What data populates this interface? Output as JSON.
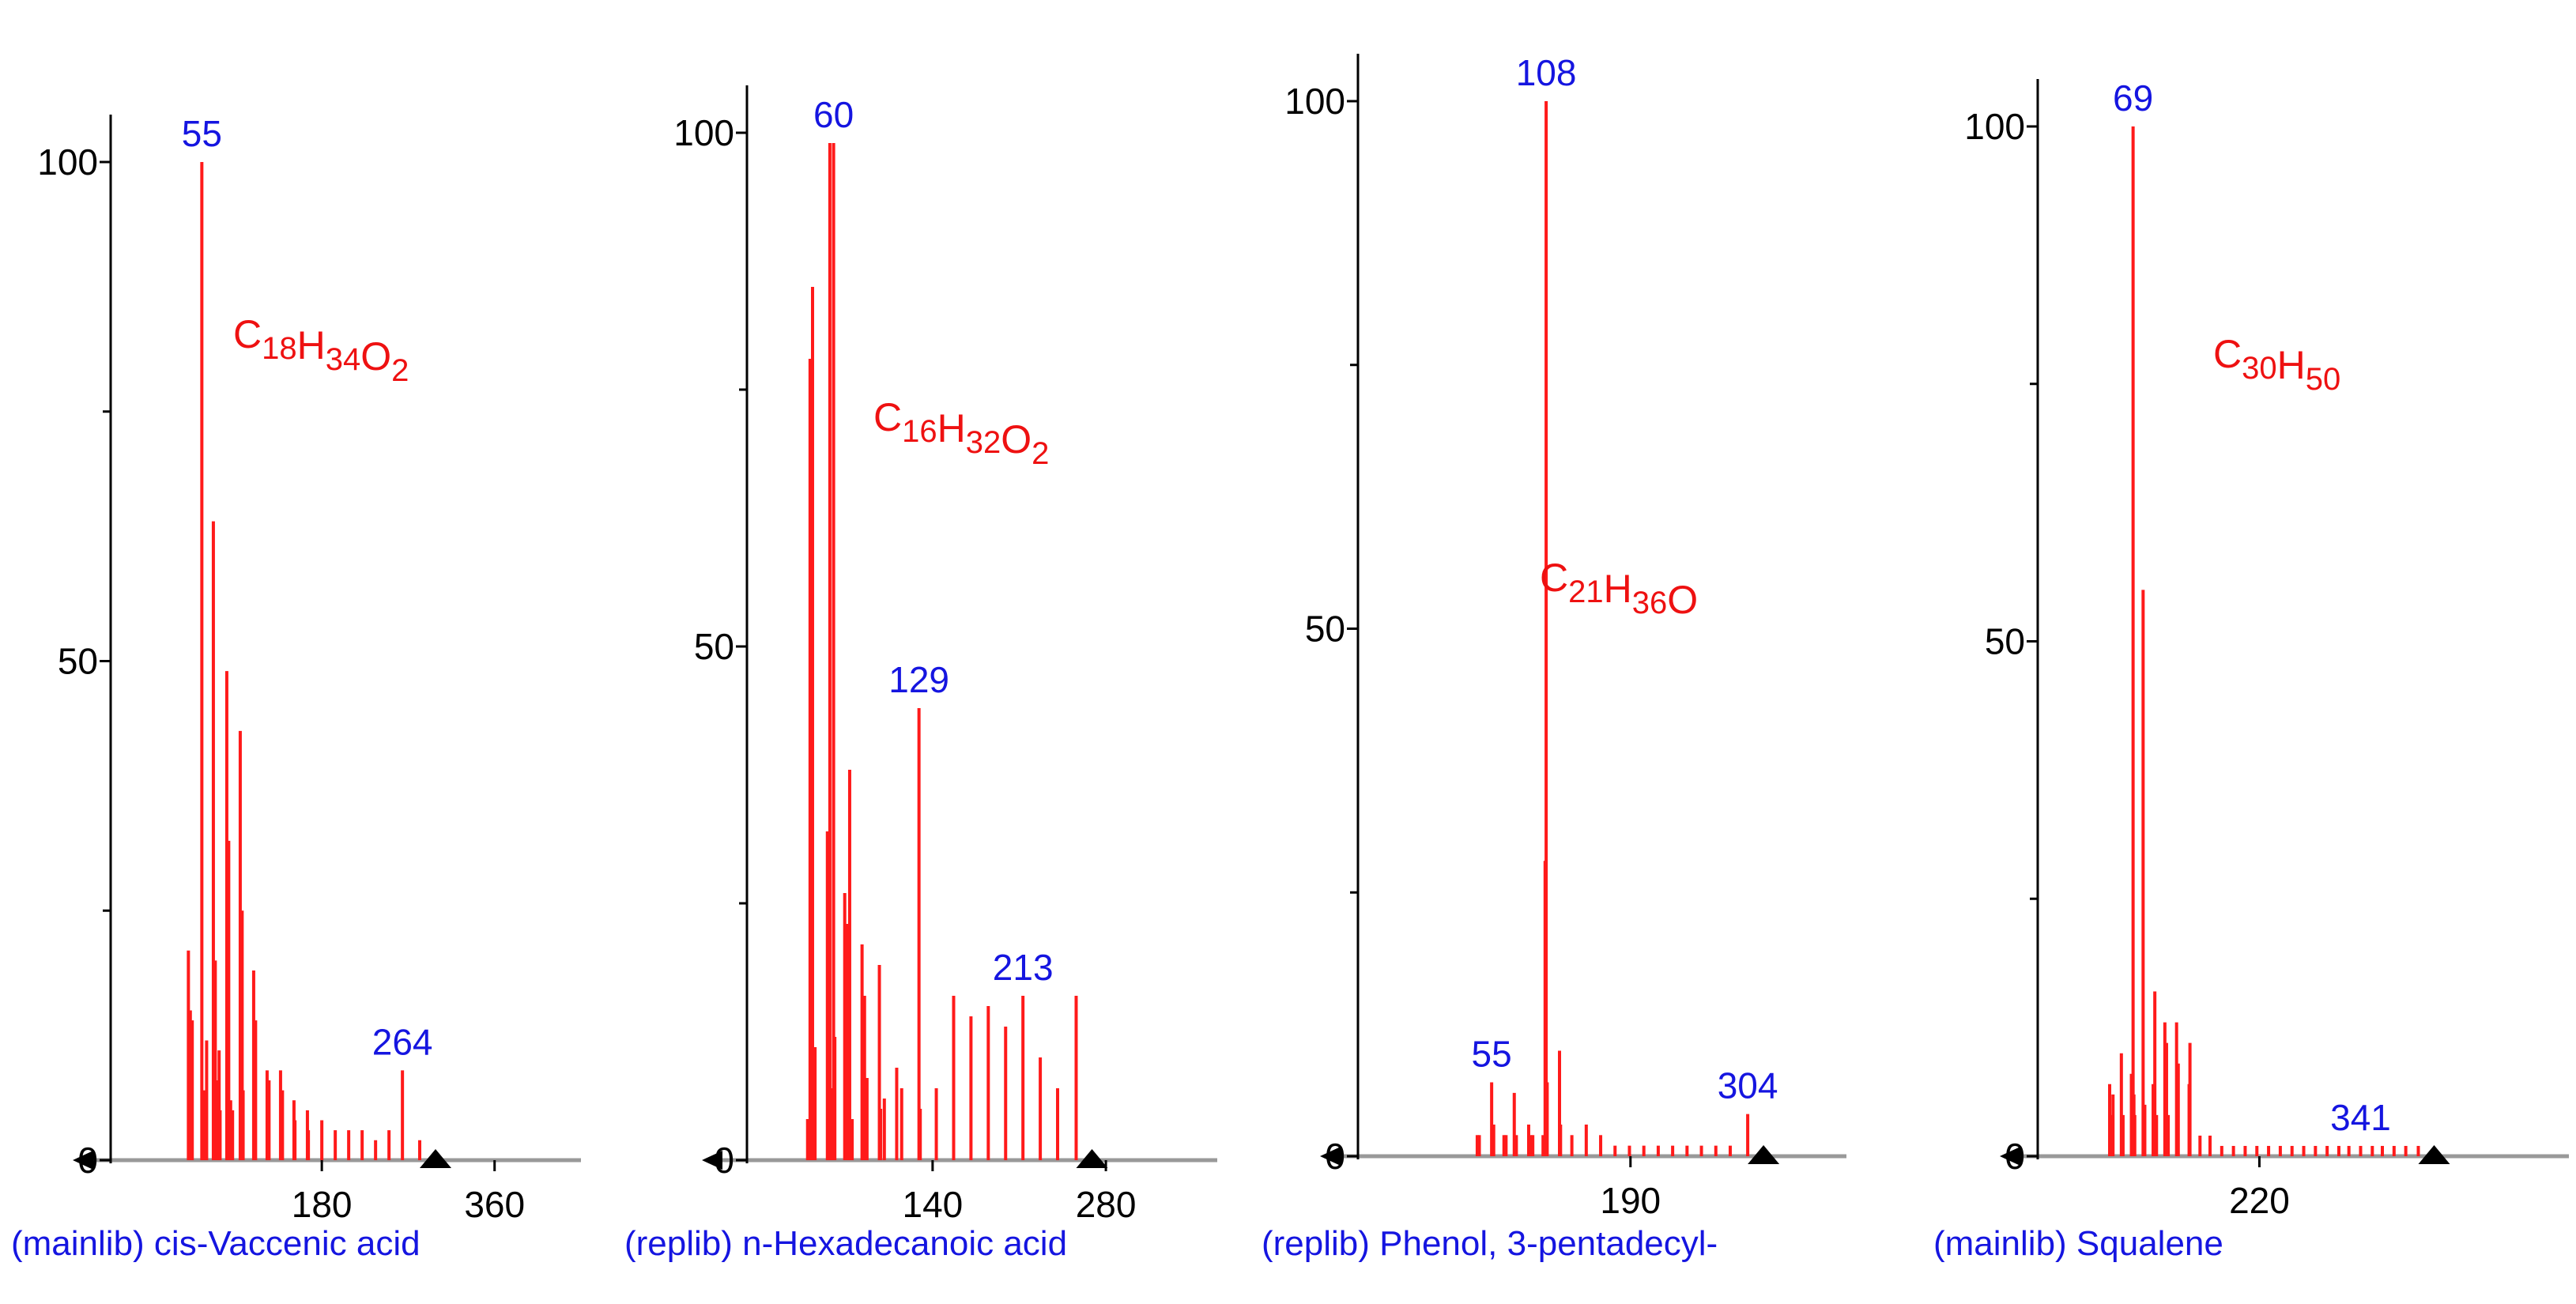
{
  "colors": {
    "peak": "#ff1a1a",
    "label": "#1515e0",
    "axis": "#000000",
    "baseline": "#999999",
    "formula": "#ee1111"
  },
  "chart_data": [
    {
      "type": "bar",
      "caption": "(mainlib) cis-Vaccenic acid",
      "formula": {
        "elements": [
          [
            "C",
            "18"
          ],
          [
            "H",
            "34"
          ],
          [
            "O",
            "2"
          ]
        ]
      },
      "y_ticks": [
        0,
        50,
        100
      ],
      "x_ticks": [
        180,
        360
      ],
      "xlim": [
        -40,
        450
      ],
      "ylim": [
        0,
        100
      ],
      "labeled_peaks": [
        {
          "x": 55,
          "label": "55"
        },
        {
          "x": 264,
          "label": "264"
        }
      ],
      "peaks": [
        [
          41,
          21
        ],
        [
          43,
          15
        ],
        [
          45,
          14
        ],
        [
          55,
          100
        ],
        [
          57,
          7
        ],
        [
          60,
          12
        ],
        [
          67,
          64
        ],
        [
          69,
          20
        ],
        [
          71,
          8
        ],
        [
          73,
          11
        ],
        [
          74,
          5
        ],
        [
          81,
          49
        ],
        [
          83,
          32
        ],
        [
          85,
          6
        ],
        [
          87,
          5
        ],
        [
          95,
          43
        ],
        [
          97,
          25
        ],
        [
          98,
          7
        ],
        [
          109,
          19
        ],
        [
          111,
          14
        ],
        [
          123,
          9
        ],
        [
          125,
          8
        ],
        [
          137,
          9
        ],
        [
          139,
          7
        ],
        [
          151,
          6
        ],
        [
          152,
          4
        ],
        [
          165,
          5
        ],
        [
          166,
          3
        ],
        [
          180,
          4
        ],
        [
          194,
          3
        ],
        [
          208,
          3
        ],
        [
          222,
          3
        ],
        [
          236,
          2
        ],
        [
          250,
          3
        ],
        [
          264,
          9
        ],
        [
          282,
          2
        ]
      ]
    },
    {
      "type": "bar",
      "caption": "(replib) n-Hexadecanoic acid",
      "formula": {
        "elements": [
          [
            "C",
            "16"
          ],
          [
            "H",
            "32"
          ],
          [
            "O",
            "2"
          ]
        ]
      },
      "y_ticks": [
        0,
        50,
        100
      ],
      "x_ticks": [
        140,
        280
      ],
      "xlim": [
        -10,
        370
      ],
      "ylim": [
        0,
        100
      ],
      "labeled_peaks": [
        {
          "x": 60,
          "label": "60"
        },
        {
          "x": 129,
          "label": "129"
        },
        {
          "x": 213,
          "label": "213"
        }
      ],
      "peaks": [
        [
          39,
          4
        ],
        [
          41,
          78
        ],
        [
          43,
          85
        ],
        [
          45,
          11
        ],
        [
          55,
          32
        ],
        [
          57,
          99
        ],
        [
          59,
          7
        ],
        [
          60,
          99
        ],
        [
          61,
          12
        ],
        [
          69,
          26
        ],
        [
          71,
          23
        ],
        [
          73,
          38
        ],
        [
          75,
          4
        ],
        [
          83,
          21
        ],
        [
          85,
          16
        ],
        [
          87,
          8
        ],
        [
          97,
          19
        ],
        [
          98,
          5
        ],
        [
          101,
          6
        ],
        [
          111,
          9
        ],
        [
          115,
          7
        ],
        [
          129,
          44
        ],
        [
          130,
          5
        ],
        [
          143,
          7
        ],
        [
          157,
          16
        ],
        [
          171,
          14
        ],
        [
          185,
          15
        ],
        [
          199,
          13
        ],
        [
          213,
          16
        ],
        [
          227,
          10
        ],
        [
          241,
          7
        ],
        [
          256,
          16
        ]
      ]
    },
    {
      "type": "bar",
      "caption": "(replib) Phenol, 3-pentadecyl-",
      "formula": {
        "elements": [
          [
            "C",
            "21"
          ],
          [
            "H",
            "36"
          ],
          [
            "O",
            ""
          ]
        ]
      },
      "y_ticks": [
        0,
        50,
        100
      ],
      "x_ticks": [
        190
      ],
      "xlim": [
        -75,
        400
      ],
      "ylim": [
        0,
        100
      ],
      "labeled_peaks": [
        {
          "x": 55,
          "label": "55"
        },
        {
          "x": 108,
          "label": "108"
        },
        {
          "x": 304,
          "label": "304"
        }
      ],
      "peaks": [
        [
          41,
          2
        ],
        [
          43,
          2
        ],
        [
          55,
          7
        ],
        [
          57,
          3
        ],
        [
          67,
          2
        ],
        [
          69,
          2
        ],
        [
          77,
          6
        ],
        [
          79,
          2
        ],
        [
          91,
          3
        ],
        [
          93,
          2
        ],
        [
          95,
          2
        ],
        [
          105,
          2
        ],
        [
          107,
          28
        ],
        [
          108,
          100
        ],
        [
          109,
          7
        ],
        [
          121,
          10
        ],
        [
          122,
          3
        ],
        [
          133,
          2
        ],
        [
          147,
          3
        ],
        [
          161,
          2
        ],
        [
          175,
          1
        ],
        [
          189,
          1
        ],
        [
          203,
          1
        ],
        [
          217,
          1
        ],
        [
          231,
          1
        ],
        [
          245,
          1
        ],
        [
          259,
          1
        ],
        [
          273,
          1
        ],
        [
          287,
          1
        ],
        [
          304,
          4
        ]
      ]
    },
    {
      "type": "bar",
      "caption": "(mainlib) Squalene",
      "formula": {
        "elements": [
          [
            "C",
            "30"
          ],
          [
            "H",
            "50"
          ]
        ]
      },
      "y_ticks": [
        0,
        50,
        100
      ],
      "x_ticks": [
        220
      ],
      "xlim": [
        -45,
        590
      ],
      "ylim": [
        0,
        100
      ],
      "labeled_peaks": [
        {
          "x": 69,
          "label": "69"
        },
        {
          "x": 341,
          "label": "341"
        }
      ],
      "peaks": [
        [
          41,
          7
        ],
        [
          43,
          4
        ],
        [
          45,
          6
        ],
        [
          55,
          10
        ],
        [
          57,
          4
        ],
        [
          67,
          8
        ],
        [
          69,
          100
        ],
        [
          70,
          6
        ],
        [
          71,
          4
        ],
        [
          81,
          55
        ],
        [
          83,
          5
        ],
        [
          93,
          7
        ],
        [
          95,
          16
        ],
        [
          97,
          4
        ],
        [
          107,
          13
        ],
        [
          109,
          11
        ],
        [
          111,
          4
        ],
        [
          121,
          13
        ],
        [
          123,
          9
        ],
        [
          136,
          7
        ],
        [
          137,
          11
        ],
        [
          149,
          2
        ],
        [
          161,
          2
        ],
        [
          175,
          1
        ],
        [
          189,
          1
        ],
        [
          203,
          1
        ],
        [
          217,
          1
        ],
        [
          231,
          1
        ],
        [
          245,
          1
        ],
        [
          259,
          1
        ],
        [
          273,
          1
        ],
        [
          287,
          1
        ],
        [
          301,
          1
        ],
        [
          315,
          1
        ],
        [
          327,
          1
        ],
        [
          341,
          1
        ],
        [
          355,
          1
        ],
        [
          367,
          1
        ],
        [
          381,
          1
        ],
        [
          395,
          1
        ],
        [
          410,
          1
        ]
      ]
    }
  ]
}
